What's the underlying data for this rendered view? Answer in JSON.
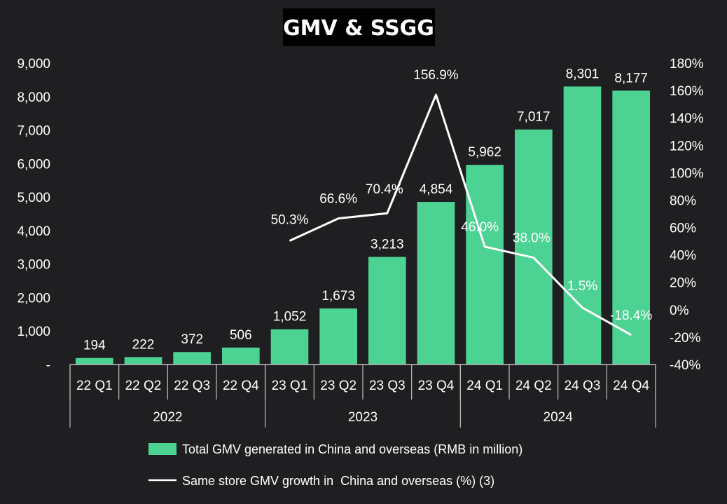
{
  "chart_data": {
    "type": "bar",
    "title": "GMV & SSGG",
    "categories": [
      "22 Q1",
      "22 Q2",
      "22 Q3",
      "22 Q4",
      "23 Q1",
      "23 Q2",
      "23 Q3",
      "23 Q4",
      "24 Q1",
      "24 Q2",
      "24 Q3",
      "24 Q4"
    ],
    "groups": [
      {
        "label": "2022",
        "span": 4
      },
      {
        "label": "2023",
        "span": 4
      },
      {
        "label": "2024",
        "span": 4
      }
    ],
    "series": [
      {
        "name": "Total GMV generated in China and overseas (RMB in million)",
        "type": "bar",
        "axis": "left",
        "color": "#4cd393",
        "values": [
          194,
          222,
          372,
          506,
          1052,
          1673,
          3213,
          4854,
          5962,
          7017,
          8301,
          8177
        ],
        "labels": [
          "194",
          "222",
          "372",
          "506",
          "1,052",
          "1,673",
          "3,213",
          "4,854",
          "5,962",
          "7,017",
          "8,301",
          "8,177"
        ]
      },
      {
        "name": "Same store GMV growth in  China and overseas (%) (3)",
        "type": "line",
        "axis": "right",
        "color": "#ffffff",
        "values": [
          null,
          null,
          null,
          null,
          50.3,
          66.6,
          70.4,
          156.9,
          46.0,
          38.0,
          1.5,
          -18.4
        ],
        "labels": [
          "",
          "",
          "",
          "",
          "50.3%",
          "66.6%",
          "70.4%",
          "156.9%",
          "46.0%",
          "38.0%",
          "1.5%",
          "-18.4%"
        ]
      }
    ],
    "y_left": {
      "ylim": [
        0,
        9000
      ],
      "ticks": [
        0,
        1000,
        2000,
        3000,
        4000,
        5000,
        6000,
        7000,
        8000,
        9000
      ],
      "tick_labels": [
        "-",
        "1,000",
        "2,000",
        "3,000",
        "4,000",
        "5,000",
        "6,000",
        "7,000",
        "8,000",
        "9,000"
      ]
    },
    "y_right": {
      "ylim": [
        -40,
        180
      ],
      "ticks": [
        -40,
        -20,
        0,
        20,
        40,
        60,
        80,
        100,
        120,
        140,
        160,
        180
      ],
      "tick_labels": [
        "-40%",
        "-20%",
        "0%",
        "20%",
        "40%",
        "60%",
        "80%",
        "100%",
        "120%",
        "140%",
        "160%",
        "180%"
      ]
    },
    "grid": false,
    "legend_position": "bottom"
  }
}
